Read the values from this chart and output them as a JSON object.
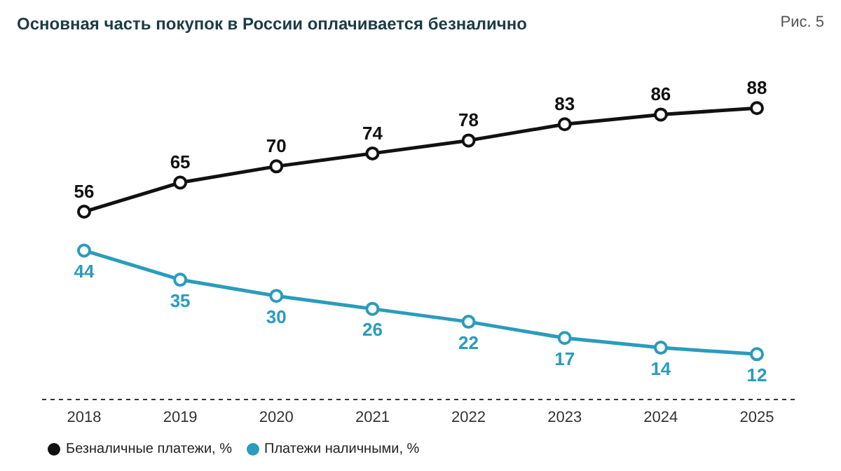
{
  "chart_data": {
    "type": "line",
    "title": "Основная часть покупок в России оплачивается безналично",
    "annotations": [
      "Рис. 5"
    ],
    "categories": [
      "2018",
      "2019",
      "2020",
      "2021",
      "2022",
      "2023",
      "2024",
      "2025"
    ],
    "series": [
      {
        "name": "Безналичные платежи, %",
        "color": "#111111",
        "values": [
          56,
          65,
          70,
          74,
          78,
          83,
          86,
          88
        ]
      },
      {
        "name": "Платежи наличными, %",
        "color": "#2a9cbc",
        "values": [
          44,
          35,
          30,
          26,
          22,
          17,
          14,
          12
        ]
      }
    ],
    "data_labels": true,
    "marker": "circle",
    "line_style": "solid",
    "grid": false,
    "legend": "bottom left",
    "tick_labels": "x"
  }
}
